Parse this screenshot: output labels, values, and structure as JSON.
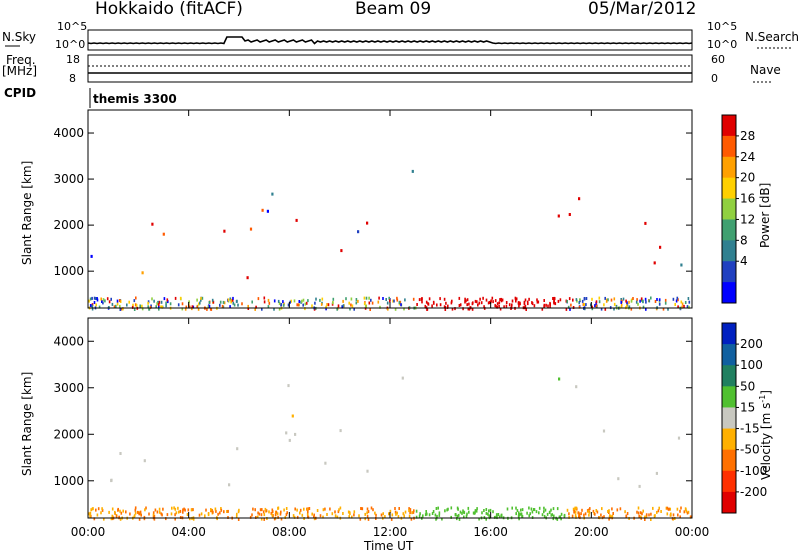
{
  "header": {
    "station": "Hokkaido (fitACF)",
    "beam": "Beam 09",
    "date": "05/Mar/2012"
  },
  "status_panel": {
    "nsky_label": "N.Sky",
    "nsky_ticks": [
      "10^5",
      "10^0"
    ],
    "nsearch_label": "N.Search",
    "nsearch_ticks": [
      "10^5",
      "10^0"
    ],
    "freq_label_1": "Freq.",
    "freq_label_2": "[MHz]",
    "freq_ticks": [
      "18",
      "8"
    ],
    "nave_label": "Nave",
    "nave_ticks": [
      "60",
      "0"
    ],
    "cpid_label": "CPID",
    "cpid_value": "themis 3300"
  },
  "chart_data": [
    {
      "type": "heatmap",
      "name": "power",
      "ylabel": "Slant Range [km]",
      "yticks": [
        "1000",
        "2000",
        "3000",
        "4000"
      ],
      "ylim": [
        200,
        4500
      ],
      "xlim": [
        "00:00",
        "00:00"
      ],
      "colorbar": {
        "label": "Power [dB]",
        "ticks": [
          "28",
          "24",
          "20",
          "16",
          "12",
          "8",
          "4"
        ],
        "colors": [
          "#e00000",
          "#ff5a00",
          "#ffa000",
          "#ffd000",
          "#90d040",
          "#40a070",
          "#308090",
          "#2040c0",
          "#0000ff"
        ]
      }
    },
    {
      "type": "heatmap",
      "name": "velocity",
      "ylabel": "Slant Range [km]",
      "yticks": [
        "1000",
        "2000",
        "3000",
        "4000"
      ],
      "ylim": [
        200,
        4500
      ],
      "xlabel": "Time UT",
      "xticks": [
        "00:00",
        "04:00",
        "08:00",
        "12:00",
        "16:00",
        "20:00",
        "00:00"
      ],
      "colorbar": {
        "label": "Velocity [m s",
        "label_sup": "-1",
        "label_end": "]",
        "ticks": [
          "200",
          "100",
          "50",
          "15",
          "-15",
          "-50",
          "-100",
          "-200"
        ],
        "colors": [
          "#0020c0",
          "#1060a0",
          "#208060",
          "#50c030",
          "#c8c8c0",
          "#ffb000",
          "#ff7000",
          "#ff3000",
          "#e00000"
        ]
      }
    }
  ]
}
